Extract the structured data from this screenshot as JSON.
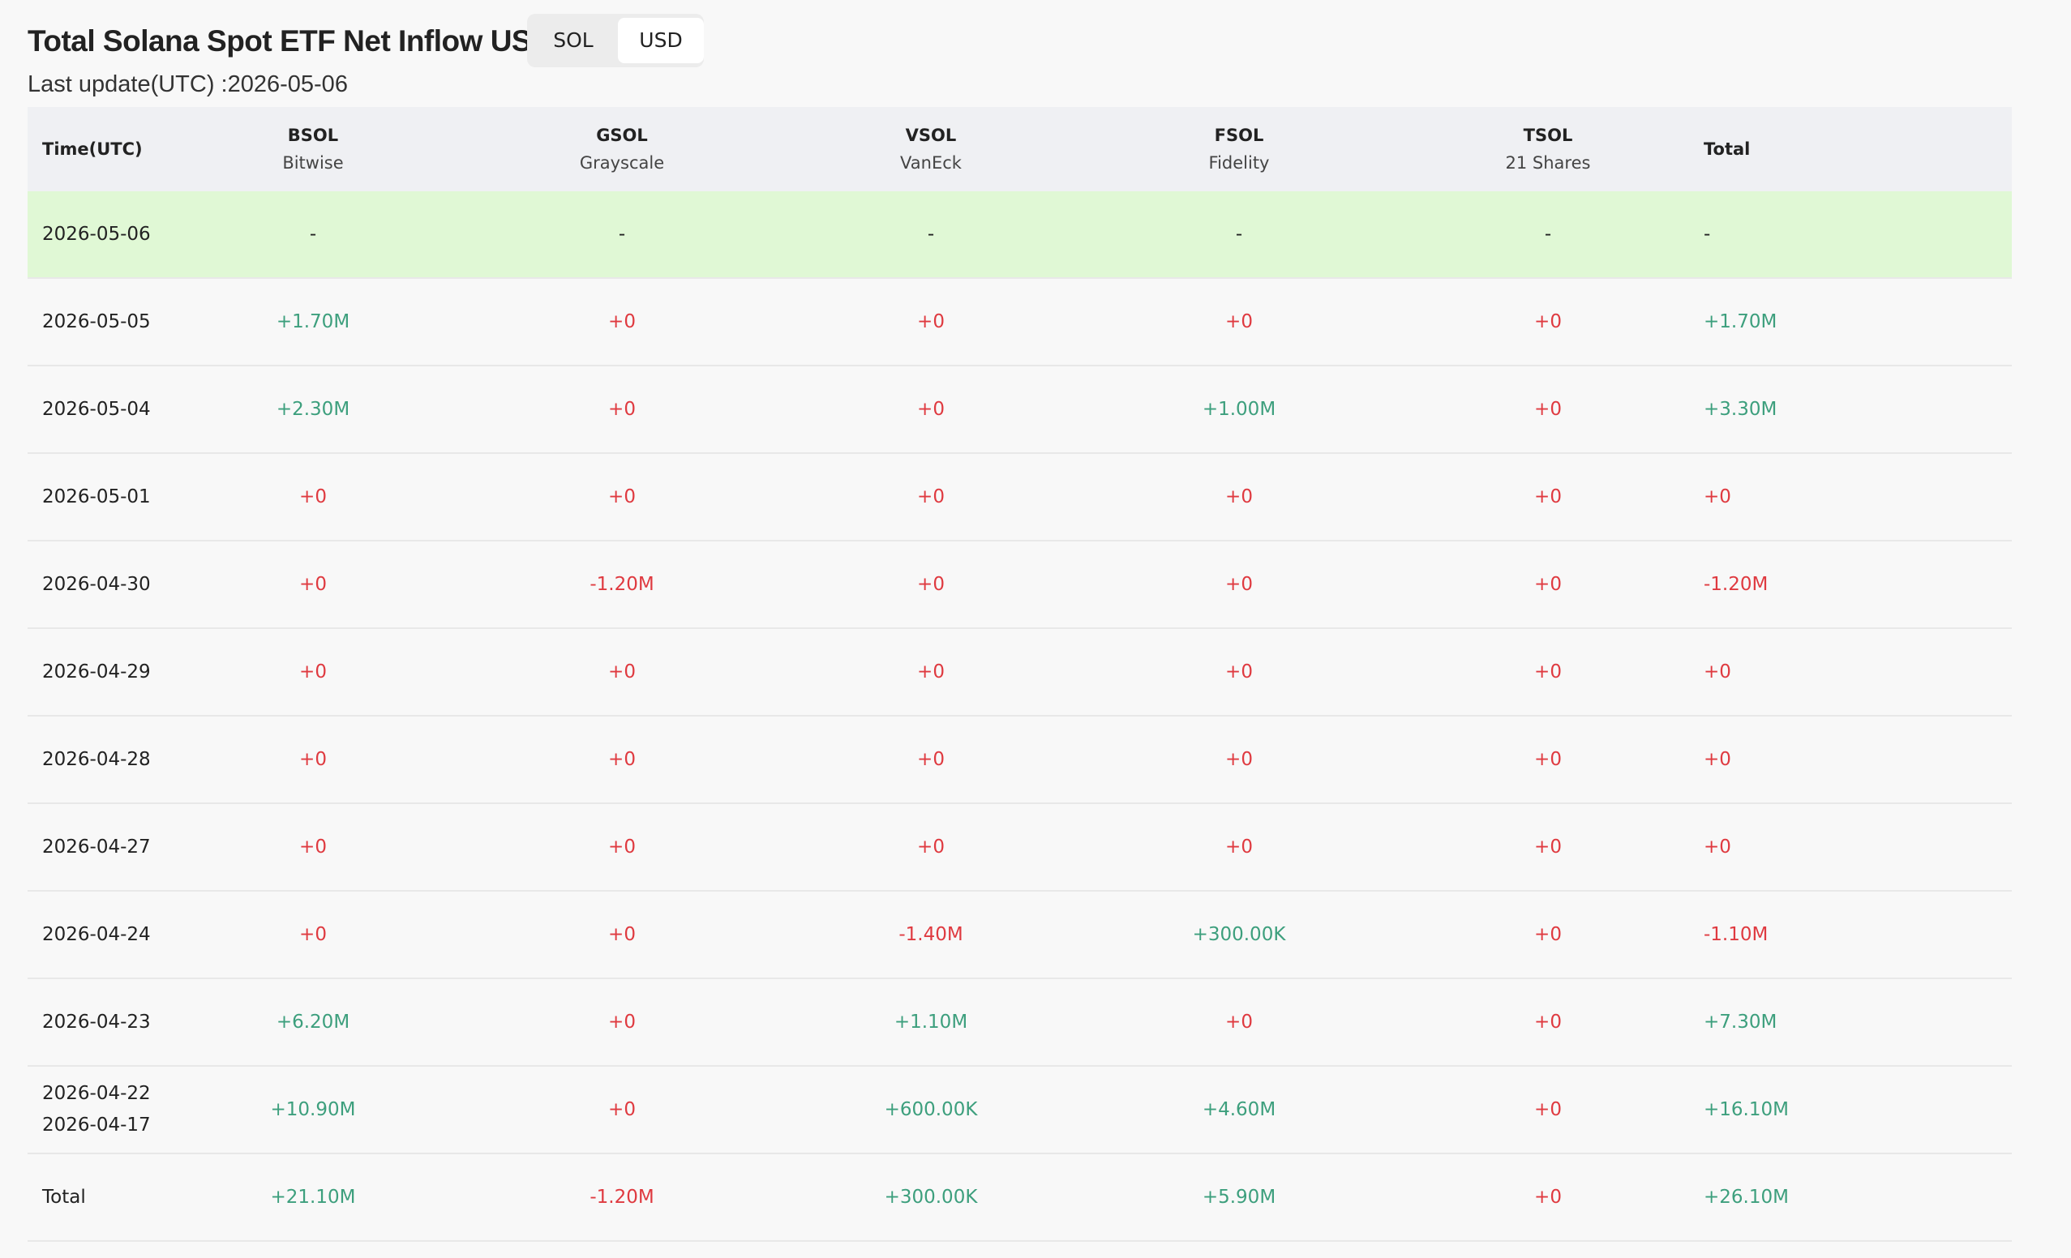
{
  "header": {
    "title": "Total Solana Spot ETF Net Inflow USD",
    "last_update": "Last update(UTC) :2026-05-06"
  },
  "toggle": {
    "options": [
      "SOL",
      "USD"
    ],
    "active": 1
  },
  "colors": {
    "up": "#3d9f7d",
    "down": "#df3a40",
    "neutral": "#222222",
    "highlight": "#e0f8d5"
  },
  "table": {
    "columns": [
      {
        "ticker": "Time(UTC)"
      },
      {
        "ticker": "BSOL",
        "issuer": "Bitwise"
      },
      {
        "ticker": "GSOL",
        "issuer": "Grayscale"
      },
      {
        "ticker": "VSOL",
        "issuer": "VanEck"
      },
      {
        "ticker": "FSOL",
        "issuer": "Fidelity"
      },
      {
        "ticker": "TSOL",
        "issuer": "21 Shares"
      },
      {
        "ticker": "Total"
      }
    ],
    "rows": [
      [
        [
          "2026-05-06"
        ],
        "-",
        "-",
        "-",
        "-",
        "-",
        "-"
      ],
      [
        [
          "2026-05-05"
        ],
        "+1.70M",
        "+0",
        "+0",
        "+0",
        "+0",
        "+1.70M"
      ],
      [
        [
          "2026-05-04"
        ],
        "+2.30M",
        "+0",
        "+0",
        "+1.00M",
        "+0",
        "+3.30M"
      ],
      [
        [
          "2026-05-01"
        ],
        "+0",
        "+0",
        "+0",
        "+0",
        "+0",
        "+0"
      ],
      [
        [
          "2026-04-30"
        ],
        "+0",
        "-1.20M",
        "+0",
        "+0",
        "+0",
        "-1.20M"
      ],
      [
        [
          "2026-04-29"
        ],
        "+0",
        "+0",
        "+0",
        "+0",
        "+0",
        "+0"
      ],
      [
        [
          "2026-04-28"
        ],
        "+0",
        "+0",
        "+0",
        "+0",
        "+0",
        "+0"
      ],
      [
        [
          "2026-04-27"
        ],
        "+0",
        "+0",
        "+0",
        "+0",
        "+0",
        "+0"
      ],
      [
        [
          "2026-04-24"
        ],
        "+0",
        "+0",
        "-1.40M",
        "+300.00K",
        "+0",
        "-1.10M"
      ],
      [
        [
          "2026-04-23"
        ],
        "+6.20M",
        "+0",
        "+1.10M",
        "+0",
        "+0",
        "+7.30M"
      ],
      [
        [
          "2026-04-22",
          "2026-04-17"
        ],
        "+10.90M",
        "+0",
        "+600.00K",
        "+4.60M",
        "+0",
        "+16.10M"
      ],
      [
        [
          "Total"
        ],
        "+21.10M",
        "-1.20M",
        "+300.00K",
        "+5.90M",
        "+0",
        "+26.10M"
      ]
    ]
  }
}
